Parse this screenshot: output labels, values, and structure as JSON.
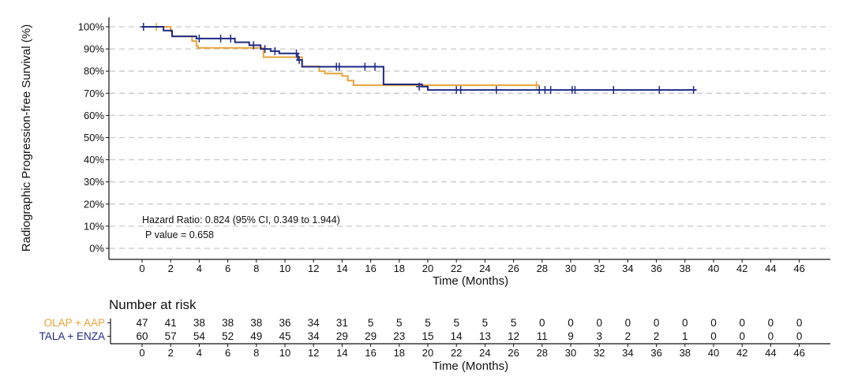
{
  "chart_data": {
    "type": "line",
    "subtype": "kaplan-meier",
    "xlabel": "Time (Months)",
    "ylabel": "Radiographic Progression-free Survival (%)",
    "xlim": [
      -2,
      48
    ],
    "ylim": [
      -4,
      105
    ],
    "x_ticks": [
      0,
      2,
      4,
      6,
      8,
      10,
      12,
      14,
      16,
      18,
      20,
      22,
      24,
      26,
      28,
      30,
      32,
      34,
      36,
      38,
      40,
      42,
      44,
      46
    ],
    "y_ticks": [
      0,
      10,
      20,
      30,
      40,
      50,
      60,
      70,
      80,
      90,
      100
    ],
    "y_tick_labels": [
      "0%",
      "10%",
      "20%",
      "30%",
      "40%",
      "50%",
      "60%",
      "70%",
      "80%",
      "90%",
      "100%"
    ],
    "grid": "horizontal dashed",
    "series": [
      {
        "name": "OLAP + AAP",
        "color": "#E8A33A",
        "steps": [
          [
            0,
            100
          ],
          [
            2,
            97.8
          ],
          [
            2.1,
            95.7
          ],
          [
            3.5,
            93.6
          ],
          [
            3.8,
            91.5
          ],
          [
            3.9,
            90.5
          ],
          [
            8.5,
            86.3
          ],
          [
            11.2,
            82.1
          ],
          [
            12.4,
            80.0
          ],
          [
            12.8,
            78.9
          ],
          [
            14.0,
            77.8
          ],
          [
            14.4,
            75.7
          ],
          [
            14.8,
            73.6
          ],
          [
            27.8,
            73.6
          ]
        ],
        "censored": [
          [
            1.0,
            100
          ],
          [
            27.6,
            73.6
          ]
        ]
      },
      {
        "name": "TALA + ENZA",
        "color": "#1F2A85",
        "steps": [
          [
            0,
            100
          ],
          [
            1.5,
            98.3
          ],
          [
            2.1,
            95.7
          ],
          [
            3.8,
            94.7
          ],
          [
            6.5,
            93.0
          ],
          [
            7.5,
            91.7
          ],
          [
            8.3,
            90.0
          ],
          [
            9.0,
            89.0
          ],
          [
            9.6,
            88.0
          ],
          [
            10.9,
            85.0
          ],
          [
            11.2,
            82.0
          ],
          [
            16.9,
            74.0
          ],
          [
            19.6,
            73.0
          ],
          [
            20.0,
            71.5
          ],
          [
            38.8,
            71.5
          ]
        ],
        "censored": [
          [
            0.1,
            100
          ],
          [
            4.0,
            94.7
          ],
          [
            5.5,
            94.7
          ],
          [
            6.2,
            94.7
          ],
          [
            7.8,
            91.7
          ],
          [
            8.6,
            90.0
          ],
          [
            9.3,
            89.0
          ],
          [
            10.8,
            88.0
          ],
          [
            11.0,
            85.0
          ],
          [
            13.6,
            82.0
          ],
          [
            13.8,
            82.0
          ],
          [
            15.6,
            82.0
          ],
          [
            16.3,
            82.0
          ],
          [
            19.4,
            73.0
          ],
          [
            22.0,
            71.5
          ],
          [
            22.3,
            71.5
          ],
          [
            24.8,
            71.5
          ],
          [
            27.8,
            71.5
          ],
          [
            28.2,
            71.5
          ],
          [
            28.6,
            71.5
          ],
          [
            30.1,
            71.5
          ],
          [
            30.3,
            71.5
          ],
          [
            33.0,
            71.5
          ],
          [
            36.2,
            71.5
          ],
          [
            38.6,
            71.5
          ]
        ]
      }
    ],
    "annotation": {
      "line1": "Hazard Ratio: 0.824 (95% CI, 0.349 to 1.944)",
      "line2": "P value =  0.658"
    },
    "risk_table": {
      "title": "Number at risk",
      "times": [
        0,
        2,
        4,
        6,
        8,
        10,
        12,
        14,
        16,
        18,
        20,
        22,
        24,
        26,
        28,
        30,
        32,
        34,
        36,
        38,
        40,
        42,
        44,
        46
      ],
      "xlabel": "Time (Months)",
      "rows": [
        {
          "label": "OLAP + AAP",
          "color": "#E8A33A",
          "values": [
            47,
            41,
            38,
            38,
            38,
            36,
            34,
            31,
            5,
            5,
            5,
            5,
            5,
            5,
            0,
            0,
            0,
            0,
            0,
            0,
            0,
            0,
            0,
            0
          ]
        },
        {
          "label": "TALA + ENZA",
          "color": "#1F2A85",
          "values": [
            60,
            57,
            54,
            52,
            49,
            45,
            34,
            29,
            29,
            23,
            15,
            14,
            13,
            12,
            11,
            9,
            3,
            2,
            2,
            1,
            0,
            0,
            0,
            0
          ]
        }
      ]
    }
  }
}
